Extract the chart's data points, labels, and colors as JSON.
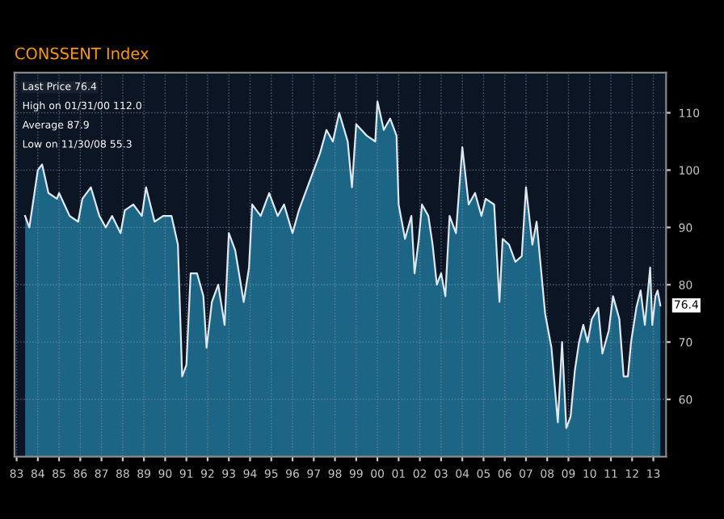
{
  "chart_data": {
    "type": "area",
    "title": "CONSSENT Index",
    "x": [
      1983.4,
      1983.6,
      1984.0,
      1984.2,
      1984.5,
      1984.9,
      1985.0,
      1985.5,
      1985.9,
      1986.1,
      1986.5,
      1986.9,
      1987.2,
      1987.5,
      1987.9,
      1988.1,
      1988.5,
      1988.9,
      1989.1,
      1989.5,
      1989.9,
      1990.3,
      1990.6,
      1990.8,
      1991.0,
      1991.2,
      1991.5,
      1991.8,
      1991.95,
      1992.2,
      1992.5,
      1992.8,
      1993.0,
      1993.3,
      1993.7,
      1993.95,
      1994.1,
      1994.5,
      1994.9,
      1995.3,
      1995.6,
      1996.0,
      1996.3,
      1996.9,
      1997.3,
      1997.6,
      1997.9,
      1998.2,
      1998.6,
      1998.8,
      1999.0,
      1999.5,
      1999.9,
      2000.0,
      2000.3,
      2000.6,
      2000.9,
      2001.0,
      2001.3,
      2001.6,
      2001.75,
      2001.95,
      2002.1,
      2002.4,
      2002.6,
      2002.8,
      2003.0,
      2003.2,
      2003.4,
      2003.7,
      2004.0,
      2004.3,
      2004.6,
      2004.9,
      2005.1,
      2005.5,
      2005.75,
      2005.9,
      2006.2,
      2006.5,
      2006.8,
      2007.0,
      2007.3,
      2007.5,
      2007.7,
      2007.9,
      2008.2,
      2008.5,
      2008.7,
      2008.9,
      2009.1,
      2009.3,
      2009.5,
      2009.7,
      2009.9,
      2010.1,
      2010.4,
      2010.6,
      2010.9,
      2011.1,
      2011.4,
      2011.6,
      2011.8,
      2011.95,
      2012.2,
      2012.4,
      2012.6,
      2012.85,
      2012.95,
      2013.1,
      2013.2,
      2013.33
    ],
    "series": [
      {
        "color": "#1d6585",
        "values": [
          92,
          90,
          100,
          101,
          96,
          95,
          96,
          92,
          91,
          95,
          97,
          92,
          90,
          92,
          89,
          93,
          94,
          92,
          97,
          91,
          92,
          92,
          87,
          64,
          66,
          82,
          82,
          78,
          69,
          77,
          80,
          73,
          89,
          86,
          77,
          83,
          94,
          92,
          96,
          92,
          94,
          89,
          93,
          99,
          103,
          107,
          105,
          110,
          105,
          97,
          108,
          106,
          105,
          112,
          107,
          109,
          106,
          94,
          88,
          92,
          82,
          88,
          94,
          92,
          87,
          80,
          82,
          78,
          92,
          89,
          104,
          94,
          96,
          92,
          95,
          94,
          77,
          88,
          87,
          84,
          85,
          97,
          87,
          91,
          83,
          75,
          69,
          56,
          70,
          55,
          57,
          65,
          70,
          73,
          70,
          74,
          76,
          68,
          72,
          78,
          74,
          64,
          64,
          70,
          76,
          79,
          73,
          83,
          73,
          78,
          79,
          76.4
        ]
      }
    ],
    "xlim": [
      1982.9,
      2013.6
    ],
    "xticks": [
      {
        "value": 1983,
        "label": "83"
      },
      {
        "value": 1984,
        "label": "84"
      },
      {
        "value": 1985,
        "label": "85"
      },
      {
        "value": 1986,
        "label": "86"
      },
      {
        "value": 1987,
        "label": "87"
      },
      {
        "value": 1988,
        "label": "88"
      },
      {
        "value": 1989,
        "label": "89"
      },
      {
        "value": 1990,
        "label": "90"
      },
      {
        "value": 1991,
        "label": "91"
      },
      {
        "value": 1992,
        "label": "92"
      },
      {
        "value": 1993,
        "label": "93"
      },
      {
        "value": 1994,
        "label": "94"
      },
      {
        "value": 1995,
        "label": "95"
      },
      {
        "value": 1996,
        "label": "96"
      },
      {
        "value": 1997,
        "label": "97"
      },
      {
        "value": 1998,
        "label": "98"
      },
      {
        "value": 1999,
        "label": "99"
      },
      {
        "value": 2000,
        "label": "00"
      },
      {
        "value": 2001,
        "label": "01"
      },
      {
        "value": 2002,
        "label": "02"
      },
      {
        "value": 2003,
        "label": "03"
      },
      {
        "value": 2004,
        "label": "04"
      },
      {
        "value": 2005,
        "label": "05"
      },
      {
        "value": 2006,
        "label": "06"
      },
      {
        "value": 2007,
        "label": "07"
      },
      {
        "value": 2008,
        "label": "08"
      },
      {
        "value": 2009,
        "label": "09"
      },
      {
        "value": 2010,
        "label": "10"
      },
      {
        "value": 2011,
        "label": "11"
      },
      {
        "value": 2012,
        "label": "12"
      },
      {
        "value": 2013,
        "label": "13"
      }
    ],
    "ylim": [
      50,
      117
    ],
    "yticks": [
      60,
      70,
      80,
      90,
      100,
      110
    ],
    "grid": true,
    "line_style": "solid",
    "annotations": [
      "Last Price 76.4",
      "High on 01/31/00 112.0",
      "Average 87.9",
      "Low on 11/30/08 55.3",
      {
        "text": "76.4",
        "x": 2013.33,
        "y": 76.4
      }
    ]
  }
}
